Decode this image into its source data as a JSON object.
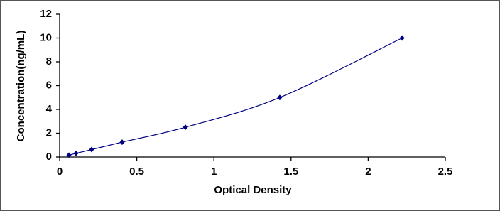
{
  "chart_data": {
    "type": "line",
    "x_label": "Optical Density",
    "y_label": "Concentration(ng/mL)",
    "x": [
      0.06,
      0.106,
      0.207,
      0.405,
      0.815,
      1.427,
      2.22
    ],
    "values": [
      0.156,
      0.312,
      0.625,
      1.25,
      2.5,
      5,
      10
    ],
    "color": "#000080",
    "xlim": [
      0,
      2.5
    ],
    "xticks": [
      0,
      0.5,
      1,
      1.5,
      2,
      2.5
    ],
    "ylim": [
      0,
      12
    ],
    "yticks": [
      0,
      2,
      4,
      6,
      8,
      10,
      12
    ],
    "grid": false
  }
}
